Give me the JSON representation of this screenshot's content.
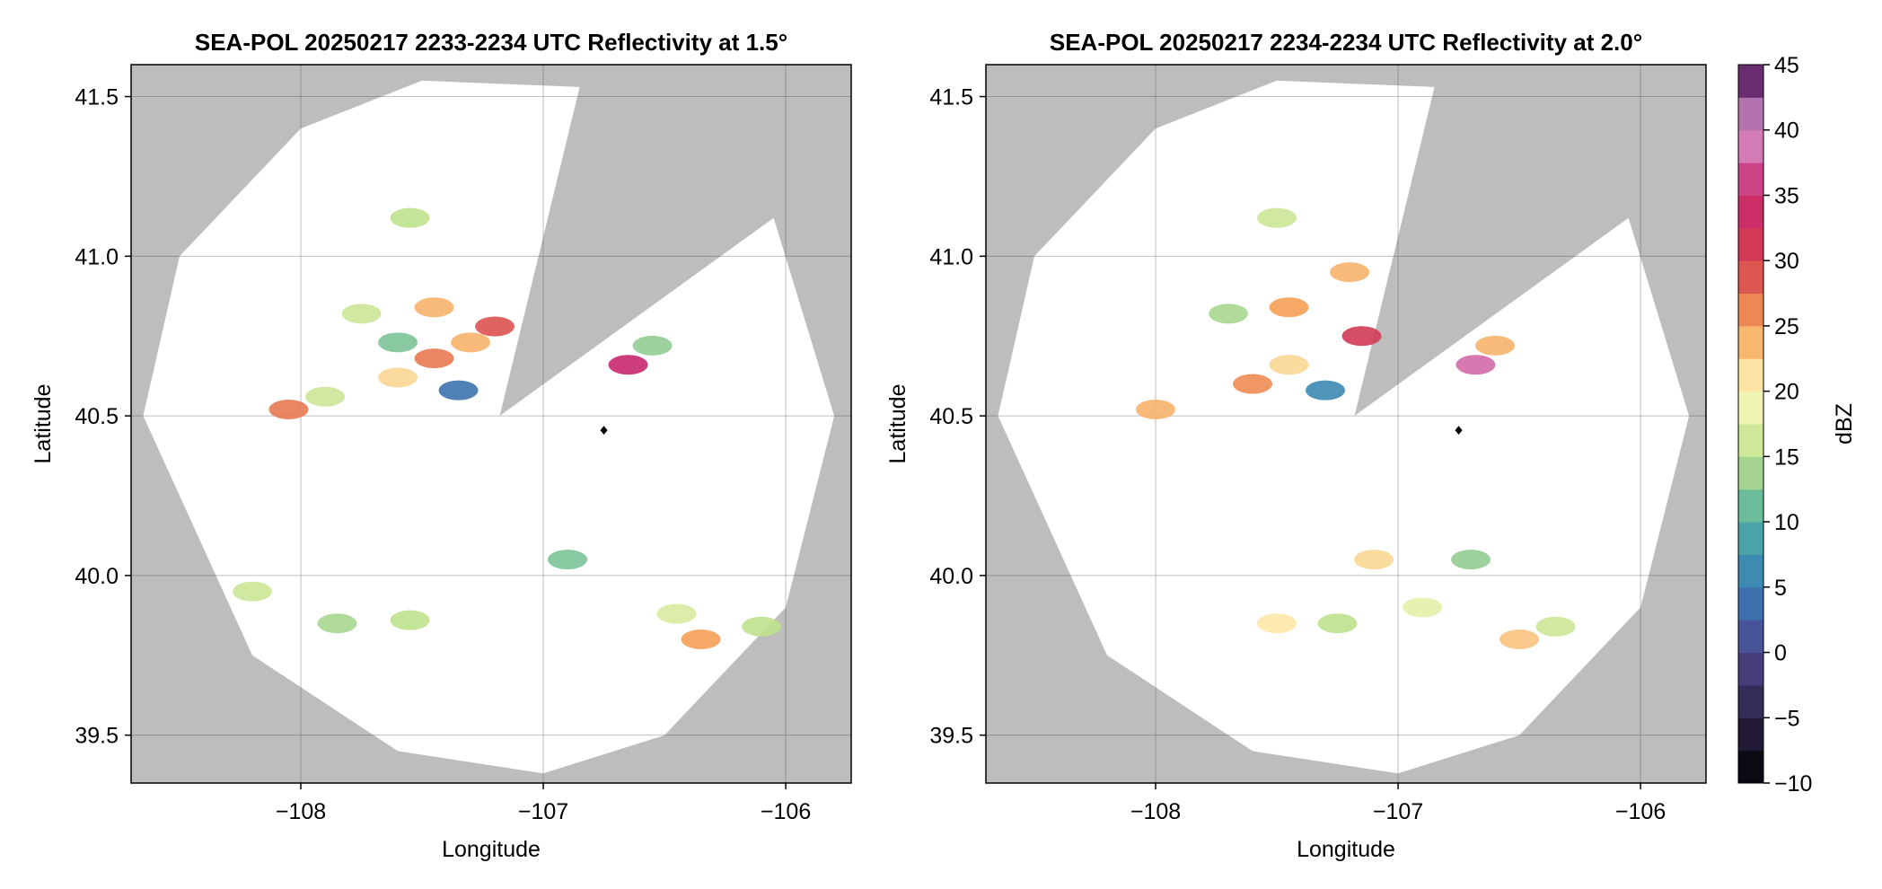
{
  "chart_data": [
    {
      "type": "heatmap",
      "title": "SEA-POL 20250217 2233-2234 UTC Reflectivity at 1.5°",
      "xlabel": "Longitude",
      "ylabel": "Latitude",
      "xlim": [
        -108.7,
        -105.73
      ],
      "ylim": [
        39.35,
        41.6
      ],
      "xticks": [
        -108,
        -107,
        -106
      ],
      "xtick_labels": [
        "−108",
        "−107",
        "−106"
      ],
      "yticks": [
        39.5,
        40.0,
        40.5,
        41.0,
        41.5
      ],
      "ytick_labels": [
        "39.5",
        "40.0",
        "40.5",
        "41.0",
        "41.5"
      ],
      "grid": true,
      "radar_site": {
        "lon": -106.75,
        "lat": 40.455
      },
      "scan_coverage_lon_lat": [
        [
          -108.65,
          40.5
        ],
        [
          -108.5,
          41.0
        ],
        [
          -108.0,
          41.4
        ],
        [
          -107.5,
          41.55
        ],
        [
          -106.85,
          41.53
        ],
        [
          -107.18,
          40.5
        ],
        [
          -106.05,
          41.12
        ],
        [
          -105.8,
          40.5
        ],
        [
          -106.0,
          39.9
        ],
        [
          -106.5,
          39.5
        ],
        [
          -107.0,
          39.38
        ],
        [
          -107.6,
          39.45
        ],
        [
          -108.2,
          39.75
        ]
      ],
      "reflectivity_cells": [
        {
          "lon": -108.05,
          "lat": 40.52,
          "dbz": 27
        },
        {
          "lon": -107.9,
          "lat": 40.56,
          "dbz": 16
        },
        {
          "lon": -107.6,
          "lat": 40.62,
          "dbz": 22
        },
        {
          "lon": -107.45,
          "lat": 40.68,
          "dbz": 27
        },
        {
          "lon": -107.3,
          "lat": 40.73,
          "dbz": 24
        },
        {
          "lon": -107.2,
          "lat": 40.78,
          "dbz": 29
        },
        {
          "lon": -107.45,
          "lat": 40.84,
          "dbz": 24
        },
        {
          "lon": -107.75,
          "lat": 40.82,
          "dbz": 16
        },
        {
          "lon": -107.6,
          "lat": 40.73,
          "dbz": 12
        },
        {
          "lon": -107.35,
          "lat": 40.58,
          "dbz": 4
        },
        {
          "lon": -107.55,
          "lat": 41.12,
          "dbz": 15
        },
        {
          "lon": -106.55,
          "lat": 40.72,
          "dbz": 13
        },
        {
          "lon": -106.65,
          "lat": 40.66,
          "dbz": 35
        },
        {
          "lon": -106.45,
          "lat": 39.88,
          "dbz": 17
        },
        {
          "lon": -106.35,
          "lat": 39.8,
          "dbz": 25
        },
        {
          "lon": -106.1,
          "lat": 39.84,
          "dbz": 15
        },
        {
          "lon": -106.9,
          "lat": 40.05,
          "dbz": 12
        },
        {
          "lon": -108.2,
          "lat": 39.95,
          "dbz": 16
        },
        {
          "lon": -107.55,
          "lat": 39.86,
          "dbz": 15
        },
        {
          "lon": -107.85,
          "lat": 39.85,
          "dbz": 14
        }
      ]
    },
    {
      "type": "heatmap",
      "title": "SEA-POL 20250217 2234-2234 UTC Reflectivity at 2.0°",
      "xlabel": "Longitude",
      "ylabel": "Latitude",
      "xlim": [
        -108.7,
        -105.73
      ],
      "ylim": [
        39.35,
        41.6
      ],
      "xticks": [
        -108,
        -107,
        -106
      ],
      "xtick_labels": [
        "−108",
        "−107",
        "−106"
      ],
      "yticks": [
        39.5,
        40.0,
        40.5,
        41.0,
        41.5
      ],
      "ytick_labels": [
        "39.5",
        "40.0",
        "40.5",
        "41.0",
        "41.5"
      ],
      "grid": true,
      "radar_site": {
        "lon": -106.75,
        "lat": 40.455
      },
      "scan_coverage_lon_lat": [
        [
          -108.65,
          40.5
        ],
        [
          -108.5,
          41.0
        ],
        [
          -108.0,
          41.4
        ],
        [
          -107.5,
          41.55
        ],
        [
          -106.85,
          41.53
        ],
        [
          -107.18,
          40.5
        ],
        [
          -106.05,
          41.12
        ],
        [
          -105.8,
          40.5
        ],
        [
          -106.0,
          39.9
        ],
        [
          -106.5,
          39.5
        ],
        [
          -107.0,
          39.38
        ],
        [
          -107.6,
          39.45
        ],
        [
          -108.2,
          39.75
        ]
      ],
      "reflectivity_cells": [
        {
          "lon": -108.0,
          "lat": 40.52,
          "dbz": 24
        },
        {
          "lon": -107.6,
          "lat": 40.6,
          "dbz": 26
        },
        {
          "lon": -107.45,
          "lat": 40.66,
          "dbz": 22
        },
        {
          "lon": -107.15,
          "lat": 40.75,
          "dbz": 31
        },
        {
          "lon": -107.45,
          "lat": 40.84,
          "dbz": 25
        },
        {
          "lon": -107.7,
          "lat": 40.82,
          "dbz": 14
        },
        {
          "lon": -107.3,
          "lat": 40.58,
          "dbz": 6
        },
        {
          "lon": -107.2,
          "lat": 40.95,
          "dbz": 24
        },
        {
          "lon": -107.5,
          "lat": 41.12,
          "dbz": 16
        },
        {
          "lon": -106.6,
          "lat": 40.72,
          "dbz": 24
        },
        {
          "lon": -106.68,
          "lat": 40.66,
          "dbz": 38
        },
        {
          "lon": -106.9,
          "lat": 39.9,
          "dbz": 18
        },
        {
          "lon": -107.5,
          "lat": 39.85,
          "dbz": 21
        },
        {
          "lon": -107.1,
          "lat": 40.05,
          "dbz": 22
        },
        {
          "lon": -107.25,
          "lat": 39.85,
          "dbz": 15
        },
        {
          "lon": -106.5,
          "lat": 39.8,
          "dbz": 23
        },
        {
          "lon": -106.35,
          "lat": 39.84,
          "dbz": 16
        },
        {
          "lon": -106.7,
          "lat": 40.05,
          "dbz": 13
        }
      ]
    }
  ],
  "colorbar": {
    "label": "dBZ",
    "range": [
      -10,
      45
    ],
    "ticks": [
      45,
      40,
      35,
      30,
      25,
      20,
      15,
      10,
      5,
      0,
      -5,
      -10
    ],
    "tick_labels": [
      "45",
      "40",
      "35",
      "30",
      "25",
      "20",
      "15",
      "10",
      "5",
      "0",
      "−5",
      "−10"
    ]
  },
  "colors": {
    "no_coverage": "#bdbdbd",
    "coverage": "#ffffff",
    "radar_site": "#000000"
  }
}
